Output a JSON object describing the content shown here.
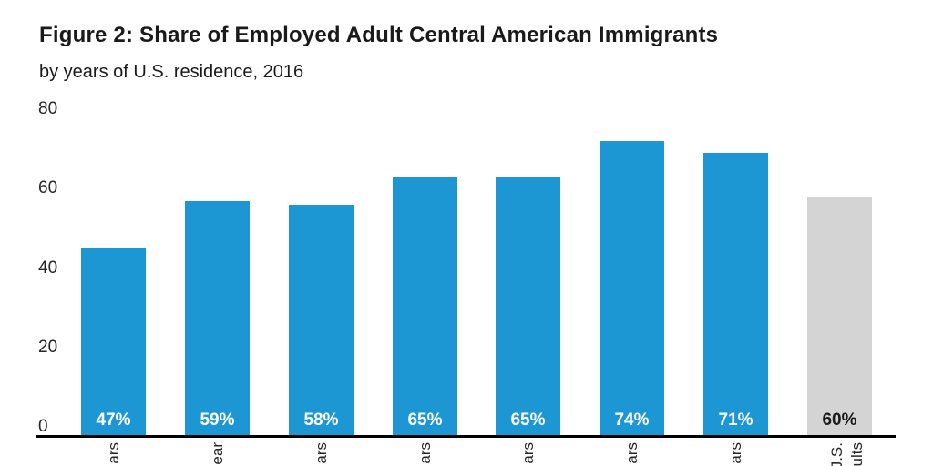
{
  "header": {
    "title": "Figure 2: Share of Employed Adult Central American Immigrants",
    "subtitle": "by years of U.S. residence, 2016"
  },
  "colors": {
    "bar_blue": "#1c97d3",
    "bar_gray": "#d4d4d4",
    "label_on_blue": "#ffffff",
    "label_on_gray": "#1a1a1a",
    "axis": "#000000",
    "text": "#262626"
  },
  "chart_data": {
    "type": "bar",
    "title": "Figure 2: Share of Employed Adult Central American Immigrants",
    "subtitle": "by years of U.S. residence, 2016",
    "values": [
      47,
      59,
      58,
      65,
      65,
      74,
      71,
      60
    ],
    "bar_value_labels": [
      "47%",
      "59%",
      "58%",
      "65%",
      "65%",
      "74%",
      "71%",
      "60%"
    ],
    "bar_color_keys": [
      "blue",
      "blue",
      "blue",
      "blue",
      "blue",
      "blue",
      "blue",
      "gray"
    ],
    "x_tick_visible_fragments": [
      [
        "ars"
      ],
      [
        "ear"
      ],
      [
        "ars"
      ],
      [
        "ars"
      ],
      [
        "ars"
      ],
      [
        "ars"
      ],
      [
        "ars"
      ],
      [
        "J.S.",
        "ults"
      ]
    ],
    "yticks": [
      0,
      20,
      40,
      60,
      80
    ],
    "ytick_labels": [
      "0",
      "20",
      "40",
      "60",
      "80"
    ],
    "ylim": [
      0,
      80
    ],
    "grid": false,
    "legend": "none",
    "xlabel": "",
    "ylabel": ""
  }
}
